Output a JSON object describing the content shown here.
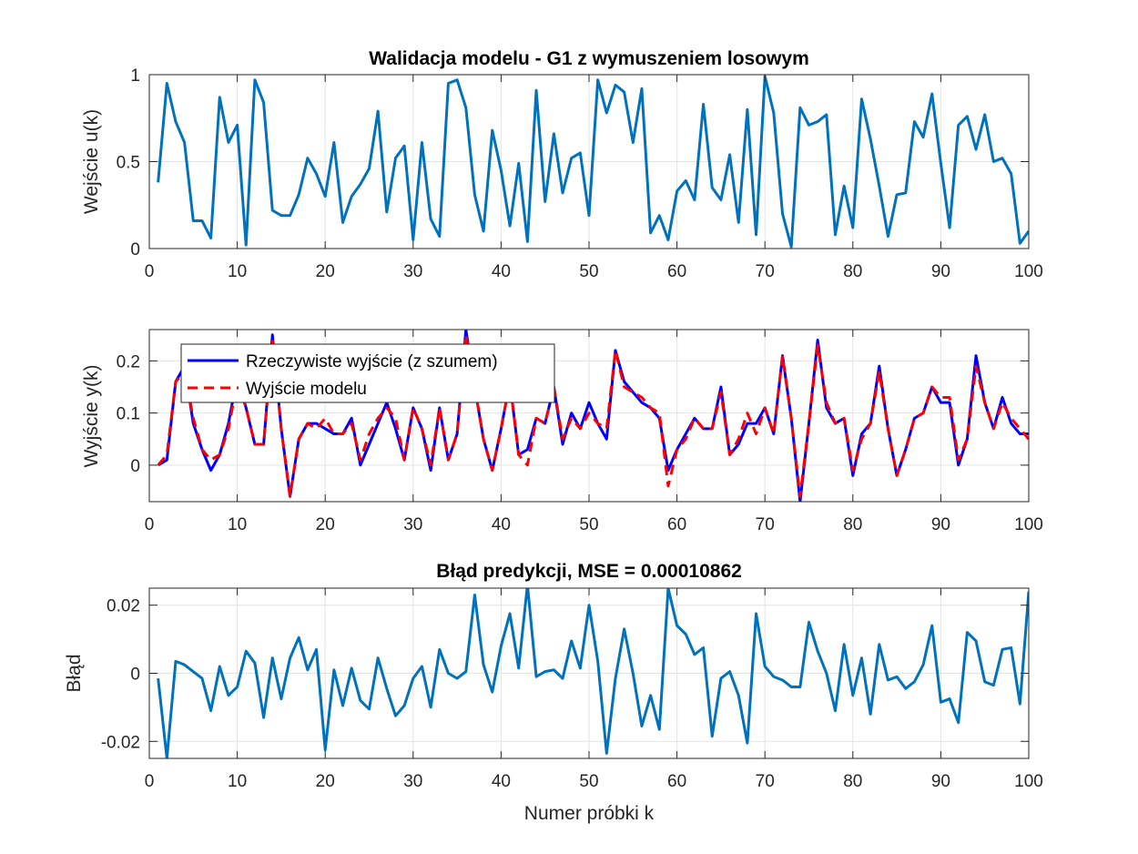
{
  "chart_data": [
    {
      "type": "line",
      "title": "Walidacja modelu - G1 z wymuszeniem losowym",
      "xlabel": "",
      "ylabel": "Wejście u(k)",
      "xlim": [
        0,
        100
      ],
      "ylim": [
        0,
        1
      ],
      "xticks": [
        0,
        10,
        20,
        30,
        40,
        50,
        60,
        70,
        80,
        90,
        100
      ],
      "yticks": [
        0,
        0.5,
        1
      ],
      "ytick_labels": [
        "0",
        "0.5",
        "1"
      ],
      "grid": true,
      "colors": [
        "#0072BD"
      ],
      "series": [
        {
          "name": "",
          "x": [
            1,
            2,
            3,
            4,
            5,
            6,
            7,
            8,
            9,
            10,
            11,
            12,
            13,
            14,
            15,
            16,
            17,
            18,
            19,
            20,
            21,
            22,
            23,
            24,
            25,
            26,
            27,
            28,
            29,
            30,
            31,
            32,
            33,
            34,
            35,
            36,
            37,
            38,
            39,
            40,
            41,
            42,
            43,
            44,
            45,
            46,
            47,
            48,
            49,
            50,
            51,
            52,
            53,
            54,
            55,
            56,
            57,
            58,
            59,
            60,
            61,
            62,
            63,
            64,
            65,
            66,
            67,
            68,
            69,
            70,
            71,
            72,
            73,
            74,
            75,
            76,
            77,
            78,
            79,
            80,
            81,
            82,
            83,
            84,
            85,
            86,
            87,
            88,
            89,
            90,
            91,
            92,
            93,
            94,
            95,
            96,
            97,
            98,
            99,
            100
          ],
          "values": [
            0.38,
            0.95,
            0.73,
            0.61,
            0.16,
            0.16,
            0.06,
            0.87,
            0.61,
            0.71,
            0.02,
            0.97,
            0.84,
            0.22,
            0.19,
            0.19,
            0.31,
            0.52,
            0.43,
            0.3,
            0.61,
            0.15,
            0.3,
            0.37,
            0.46,
            0.79,
            0.21,
            0.52,
            0.59,
            0.05,
            0.61,
            0.17,
            0.07,
            0.95,
            0.97,
            0.81,
            0.31,
            0.1,
            0.68,
            0.45,
            0.13,
            0.49,
            0.04,
            0.91,
            0.27,
            0.66,
            0.32,
            0.52,
            0.55,
            0.19,
            0.97,
            0.78,
            0.94,
            0.9,
            0.61,
            0.92,
            0.09,
            0.19,
            0.05,
            0.33,
            0.39,
            0.28,
            0.83,
            0.35,
            0.28,
            0.54,
            0.15,
            0.8,
            0.08,
            0.99,
            0.78,
            0.2,
            0.01,
            0.81,
            0.71,
            0.73,
            0.77,
            0.08,
            0.36,
            0.12,
            0.86,
            0.63,
            0.36,
            0.07,
            0.31,
            0.32,
            0.73,
            0.64,
            0.89,
            0.49,
            0.12,
            0.71,
            0.76,
            0.57,
            0.77,
            0.5,
            0.52,
            0.43,
            0.03,
            0.1
          ]
        }
      ]
    },
    {
      "type": "line",
      "title": "",
      "xlabel": "",
      "ylabel": "Wyjście y(k)",
      "xlim": [
        0,
        100
      ],
      "ylim": [
        -0.07,
        0.26
      ],
      "xticks": [
        0,
        10,
        20,
        30,
        40,
        50,
        60,
        70,
        80,
        90,
        100
      ],
      "yticks": [
        0,
        0.1,
        0.2
      ],
      "ytick_labels": [
        "0",
        "0.1",
        "0.2"
      ],
      "grid": true,
      "legend": "top-left",
      "colors": [
        "#0000FF",
        "#FF0000"
      ],
      "series": [
        {
          "name": "Rzeczywiste wyjście (z szumem)",
          "style": "solid",
          "x": [
            1,
            2,
            3,
            4,
            5,
            6,
            7,
            8,
            9,
            10,
            11,
            12,
            13,
            14,
            15,
            16,
            17,
            18,
            19,
            20,
            21,
            22,
            23,
            24,
            25,
            26,
            27,
            28,
            29,
            30,
            31,
            32,
            33,
            34,
            35,
            36,
            37,
            38,
            39,
            40,
            41,
            42,
            43,
            44,
            45,
            46,
            47,
            48,
            49,
            50,
            51,
            52,
            53,
            54,
            55,
            56,
            57,
            58,
            59,
            60,
            61,
            62,
            63,
            64,
            65,
            66,
            67,
            68,
            69,
            70,
            71,
            72,
            73,
            74,
            75,
            76,
            77,
            78,
            79,
            80,
            81,
            82,
            83,
            84,
            85,
            86,
            87,
            88,
            89,
            90,
            91,
            92,
            93,
            94,
            95,
            96,
            97,
            98,
            99,
            100
          ],
          "values": [
            0.0,
            0.01,
            0.16,
            0.19,
            0.08,
            0.03,
            -0.01,
            0.02,
            0.08,
            0.17,
            0.11,
            0.04,
            0.04,
            0.25,
            0.07,
            -0.06,
            0.05,
            0.08,
            0.08,
            0.07,
            0.06,
            0.06,
            0.09,
            0.0,
            0.04,
            0.08,
            0.12,
            0.07,
            0.01,
            0.11,
            0.07,
            -0.01,
            0.11,
            0.01,
            0.06,
            0.26,
            0.15,
            0.05,
            -0.01,
            0.07,
            0.16,
            0.02,
            0.03,
            0.09,
            0.08,
            0.15,
            0.04,
            0.1,
            0.07,
            0.12,
            0.08,
            0.05,
            0.22,
            0.16,
            0.14,
            0.12,
            0.11,
            0.09,
            -0.01,
            0.03,
            0.06,
            0.09,
            0.07,
            0.07,
            0.15,
            0.02,
            0.04,
            0.08,
            0.08,
            0.11,
            0.06,
            0.21,
            0.09,
            -0.07,
            0.08,
            0.24,
            0.11,
            0.08,
            0.09,
            -0.02,
            0.06,
            0.08,
            0.19,
            0.07,
            -0.02,
            0.03,
            0.09,
            0.1,
            0.15,
            0.12,
            0.12,
            0.0,
            0.05,
            0.21,
            0.12,
            0.07,
            0.13,
            0.08,
            0.06,
            0.06
          ]
        },
        {
          "name": "Wyjście modelu",
          "style": "dashed",
          "x": [
            1,
            2,
            3,
            4,
            5,
            6,
            7,
            8,
            9,
            10,
            11,
            12,
            13,
            14,
            15,
            16,
            17,
            18,
            19,
            20,
            21,
            22,
            23,
            24,
            25,
            26,
            27,
            28,
            29,
            30,
            31,
            32,
            33,
            34,
            35,
            36,
            37,
            38,
            39,
            40,
            41,
            42,
            43,
            44,
            45,
            46,
            47,
            48,
            49,
            50,
            51,
            52,
            53,
            54,
            55,
            56,
            57,
            58,
            59,
            60,
            61,
            62,
            63,
            64,
            65,
            66,
            67,
            68,
            69,
            70,
            71,
            72,
            73,
            74,
            75,
            76,
            77,
            78,
            79,
            80,
            81,
            82,
            83,
            84,
            85,
            86,
            87,
            88,
            89,
            90,
            91,
            92,
            93,
            94,
            95,
            96,
            97,
            98,
            99,
            100
          ],
          "values": [
            0.0,
            0.02,
            0.16,
            0.18,
            0.09,
            0.03,
            0.01,
            0.02,
            0.07,
            0.16,
            0.11,
            0.04,
            0.04,
            0.24,
            0.07,
            -0.06,
            0.05,
            0.08,
            0.07,
            0.09,
            0.06,
            0.06,
            0.08,
            0.01,
            0.06,
            0.09,
            0.11,
            0.09,
            0.01,
            0.11,
            0.07,
            0.0,
            0.11,
            0.01,
            0.06,
            0.25,
            0.15,
            0.05,
            -0.01,
            0.07,
            0.16,
            0.02,
            0.0,
            0.09,
            0.08,
            0.15,
            0.05,
            0.09,
            0.07,
            0.1,
            0.08,
            0.07,
            0.22,
            0.15,
            0.14,
            0.13,
            0.11,
            0.1,
            -0.04,
            0.03,
            0.05,
            0.09,
            0.07,
            0.07,
            0.14,
            0.02,
            0.05,
            0.1,
            0.06,
            0.11,
            0.06,
            0.21,
            0.09,
            -0.06,
            0.08,
            0.23,
            0.12,
            0.08,
            0.09,
            -0.01,
            0.05,
            0.08,
            0.18,
            0.07,
            -0.02,
            0.03,
            0.09,
            0.1,
            0.15,
            0.13,
            0.13,
            0.01,
            0.05,
            0.19,
            0.12,
            0.07,
            0.12,
            0.09,
            0.07,
            0.05
          ]
        }
      ]
    },
    {
      "type": "line",
      "title": "Błąd predykcji, MSE = 0.00010862",
      "xlabel": "Numer próbki k",
      "ylabel": "Błąd",
      "xlim": [
        0,
        100
      ],
      "ylim": [
        -0.025,
        0.025
      ],
      "xticks": [
        0,
        10,
        20,
        30,
        40,
        50,
        60,
        70,
        80,
        90,
        100
      ],
      "yticks": [
        -0.02,
        0,
        0.02
      ],
      "ytick_labels": [
        "-0.02",
        "0",
        "0.02"
      ],
      "grid": true,
      "colors": [
        "#0072BD"
      ],
      "series": [
        {
          "name": "",
          "x": [
            1,
            2,
            3,
            4,
            5,
            6,
            7,
            8,
            9,
            10,
            11,
            12,
            13,
            14,
            15,
            16,
            17,
            18,
            19,
            20,
            21,
            22,
            23,
            24,
            25,
            26,
            27,
            28,
            29,
            30,
            31,
            32,
            33,
            34,
            35,
            36,
            37,
            38,
            39,
            40,
            41,
            42,
            43,
            44,
            45,
            46,
            47,
            48,
            49,
            50,
            51,
            52,
            53,
            54,
            55,
            56,
            57,
            58,
            59,
            60,
            61,
            62,
            63,
            64,
            65,
            66,
            67,
            68,
            69,
            70,
            71,
            72,
            73,
            74,
            75,
            76,
            77,
            78,
            79,
            80,
            81,
            82,
            83,
            84,
            85,
            86,
            87,
            88,
            89,
            90,
            91,
            92,
            93,
            94,
            95,
            96,
            97,
            98,
            99,
            100
          ],
          "values": [
            -0.0015,
            -0.025,
            0.0035,
            0.0025,
            0.0005,
            -0.0015,
            -0.011,
            0.002,
            -0.0065,
            -0.004,
            0.0065,
            0.003,
            -0.013,
            0.0045,
            -0.0075,
            0.0045,
            0.0105,
            0.001,
            0.007,
            -0.0225,
            0.001,
            -0.0095,
            0.0015,
            -0.008,
            -0.0105,
            0.0045,
            -0.0045,
            -0.0125,
            -0.0095,
            -0.0015,
            0.002,
            -0.01,
            0.007,
            0.0,
            -0.0015,
            0.0005,
            0.023,
            0.0025,
            -0.0055,
            0.008,
            0.0175,
            0.0015,
            0.026,
            -0.001,
            0.0005,
            0.001,
            -0.0015,
            0.0095,
            0.0015,
            0.02,
            0.0035,
            -0.0235,
            -0.0015,
            0.013,
            0.0,
            -0.0155,
            -0.0065,
            -0.0165,
            0.025,
            0.014,
            0.0115,
            0.0055,
            0.0075,
            -0.0185,
            -0.0015,
            0.0005,
            -0.0065,
            -0.0205,
            0.0175,
            0.002,
            -0.001,
            -0.002,
            -0.004,
            -0.004,
            0.015,
            0.0065,
            0.0,
            -0.011,
            0.0085,
            -0.0065,
            0.0045,
            -0.012,
            0.0085,
            -0.002,
            -0.001,
            -0.0045,
            -0.0025,
            0.0025,
            0.014,
            -0.0085,
            -0.0075,
            -0.0145,
            0.012,
            0.0095,
            -0.0025,
            -0.0035,
            0.007,
            0.0075,
            -0.009,
            0.024
          ]
        }
      ]
    }
  ]
}
